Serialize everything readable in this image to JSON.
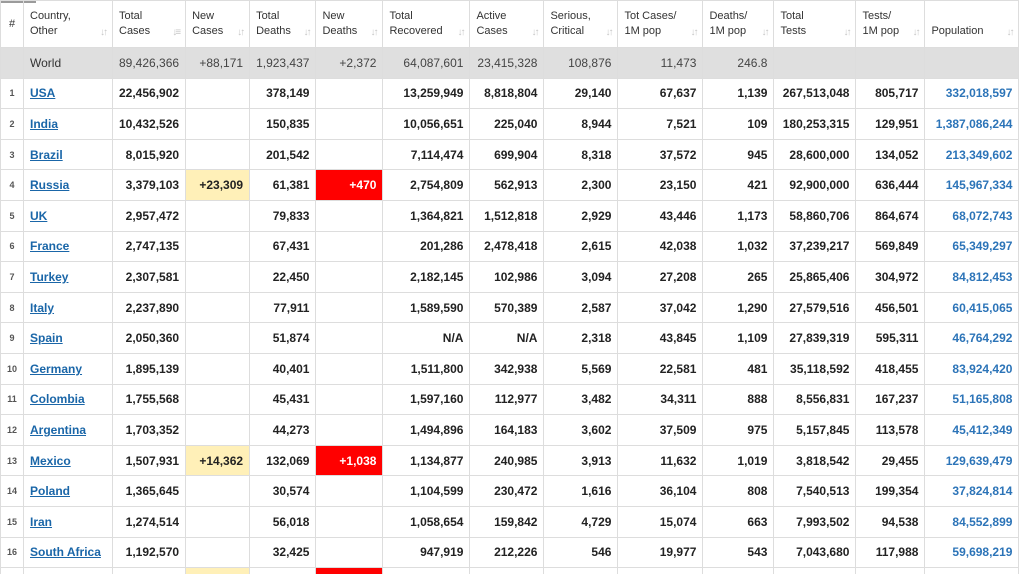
{
  "headers": [
    {
      "l1": "#",
      "l2": ""
    },
    {
      "l1": "Country,",
      "l2": "Other"
    },
    {
      "l1": "Total",
      "l2": "Cases"
    },
    {
      "l1": "New",
      "l2": "Cases"
    },
    {
      "l1": "Total",
      "l2": "Deaths"
    },
    {
      "l1": "New",
      "l2": "Deaths"
    },
    {
      "l1": "Total",
      "l2": "Recovered"
    },
    {
      "l1": "Active",
      "l2": "Cases"
    },
    {
      "l1": "Serious,",
      "l2": "Critical"
    },
    {
      "l1": "Tot Cases/",
      "l2": "1M pop"
    },
    {
      "l1": "Deaths/",
      "l2": "1M pop"
    },
    {
      "l1": "Total",
      "l2": "Tests"
    },
    {
      "l1": "Tests/",
      "l2": "1M pop"
    },
    {
      "l1": "",
      "l2": "Population"
    }
  ],
  "world": [
    "",
    "World",
    "89,426,366",
    "+88,171",
    "1,923,437",
    "+2,372",
    "64,087,601",
    "23,415,328",
    "108,876",
    "11,473",
    "246.8",
    "",
    "",
    ""
  ],
  "rows": [
    [
      "1",
      "USA",
      "22,456,902",
      "",
      "378,149",
      "",
      "13,259,949",
      "8,818,804",
      "29,140",
      "67,637",
      "1,139",
      "267,513,048",
      "805,717",
      "332,018,597"
    ],
    [
      "2",
      "India",
      "10,432,526",
      "",
      "150,835",
      "",
      "10,056,651",
      "225,040",
      "8,944",
      "7,521",
      "109",
      "180,253,315",
      "129,951",
      "1,387,086,244"
    ],
    [
      "3",
      "Brazil",
      "8,015,920",
      "",
      "201,542",
      "",
      "7,114,474",
      "699,904",
      "8,318",
      "37,572",
      "945",
      "28,600,000",
      "134,052",
      "213,349,602"
    ],
    [
      "4",
      "Russia",
      "3,379,103",
      "+23,309",
      "61,381",
      "+470",
      "2,754,809",
      "562,913",
      "2,300",
      "23,150",
      "421",
      "92,900,000",
      "636,444",
      "145,967,334"
    ],
    [
      "5",
      "UK",
      "2,957,472",
      "",
      "79,833",
      "",
      "1,364,821",
      "1,512,818",
      "2,929",
      "43,446",
      "1,173",
      "58,860,706",
      "864,674",
      "68,072,743"
    ],
    [
      "6",
      "France",
      "2,747,135",
      "",
      "67,431",
      "",
      "201,286",
      "2,478,418",
      "2,615",
      "42,038",
      "1,032",
      "37,239,217",
      "569,849",
      "65,349,297"
    ],
    [
      "7",
      "Turkey",
      "2,307,581",
      "",
      "22,450",
      "",
      "2,182,145",
      "102,986",
      "3,094",
      "27,208",
      "265",
      "25,865,406",
      "304,972",
      "84,812,453"
    ],
    [
      "8",
      "Italy",
      "2,237,890",
      "",
      "77,911",
      "",
      "1,589,590",
      "570,389",
      "2,587",
      "37,042",
      "1,290",
      "27,579,516",
      "456,501",
      "60,415,065"
    ],
    [
      "9",
      "Spain",
      "2,050,360",
      "",
      "51,874",
      "",
      "N/A",
      "N/A",
      "2,318",
      "43,845",
      "1,109",
      "27,839,319",
      "595,311",
      "46,764,292"
    ],
    [
      "10",
      "Germany",
      "1,895,139",
      "",
      "40,401",
      "",
      "1,511,800",
      "342,938",
      "5,569",
      "22,581",
      "481",
      "35,118,592",
      "418,455",
      "83,924,420"
    ],
    [
      "11",
      "Colombia",
      "1,755,568",
      "",
      "45,431",
      "",
      "1,597,160",
      "112,977",
      "3,482",
      "34,311",
      "888",
      "8,556,831",
      "167,237",
      "51,165,808"
    ],
    [
      "12",
      "Argentina",
      "1,703,352",
      "",
      "44,273",
      "",
      "1,494,896",
      "164,183",
      "3,602",
      "37,509",
      "975",
      "5,157,845",
      "113,578",
      "45,412,349"
    ],
    [
      "13",
      "Mexico",
      "1,507,931",
      "+14,362",
      "132,069",
      "+1,038",
      "1,134,877",
      "240,985",
      "3,913",
      "11,632",
      "1,019",
      "3,818,542",
      "29,455",
      "129,639,479"
    ],
    [
      "14",
      "Poland",
      "1,365,645",
      "",
      "30,574",
      "",
      "1,104,599",
      "230,472",
      "1,616",
      "36,104",
      "808",
      "7,540,513",
      "199,354",
      "37,824,814"
    ],
    [
      "15",
      "Iran",
      "1,274,514",
      "",
      "56,018",
      "",
      "1,058,654",
      "159,842",
      "4,729",
      "15,074",
      "663",
      "7,993,502",
      "94,538",
      "84,552,899"
    ],
    [
      "16",
      "South Africa",
      "1,192,570",
      "",
      "32,425",
      "",
      "947,919",
      "212,226",
      "546",
      "19,977",
      "543",
      "7,043,680",
      "117,988",
      "59,698,219"
    ]
  ],
  "colors": {
    "new_cases_highlight": "#fff0b8",
    "new_deaths_highlight": "#ff0000",
    "link": "#1a66a8",
    "world_row_bg": "#dfdfdf"
  },
  "icons": {
    "sort": "sort-arrows-icon"
  }
}
